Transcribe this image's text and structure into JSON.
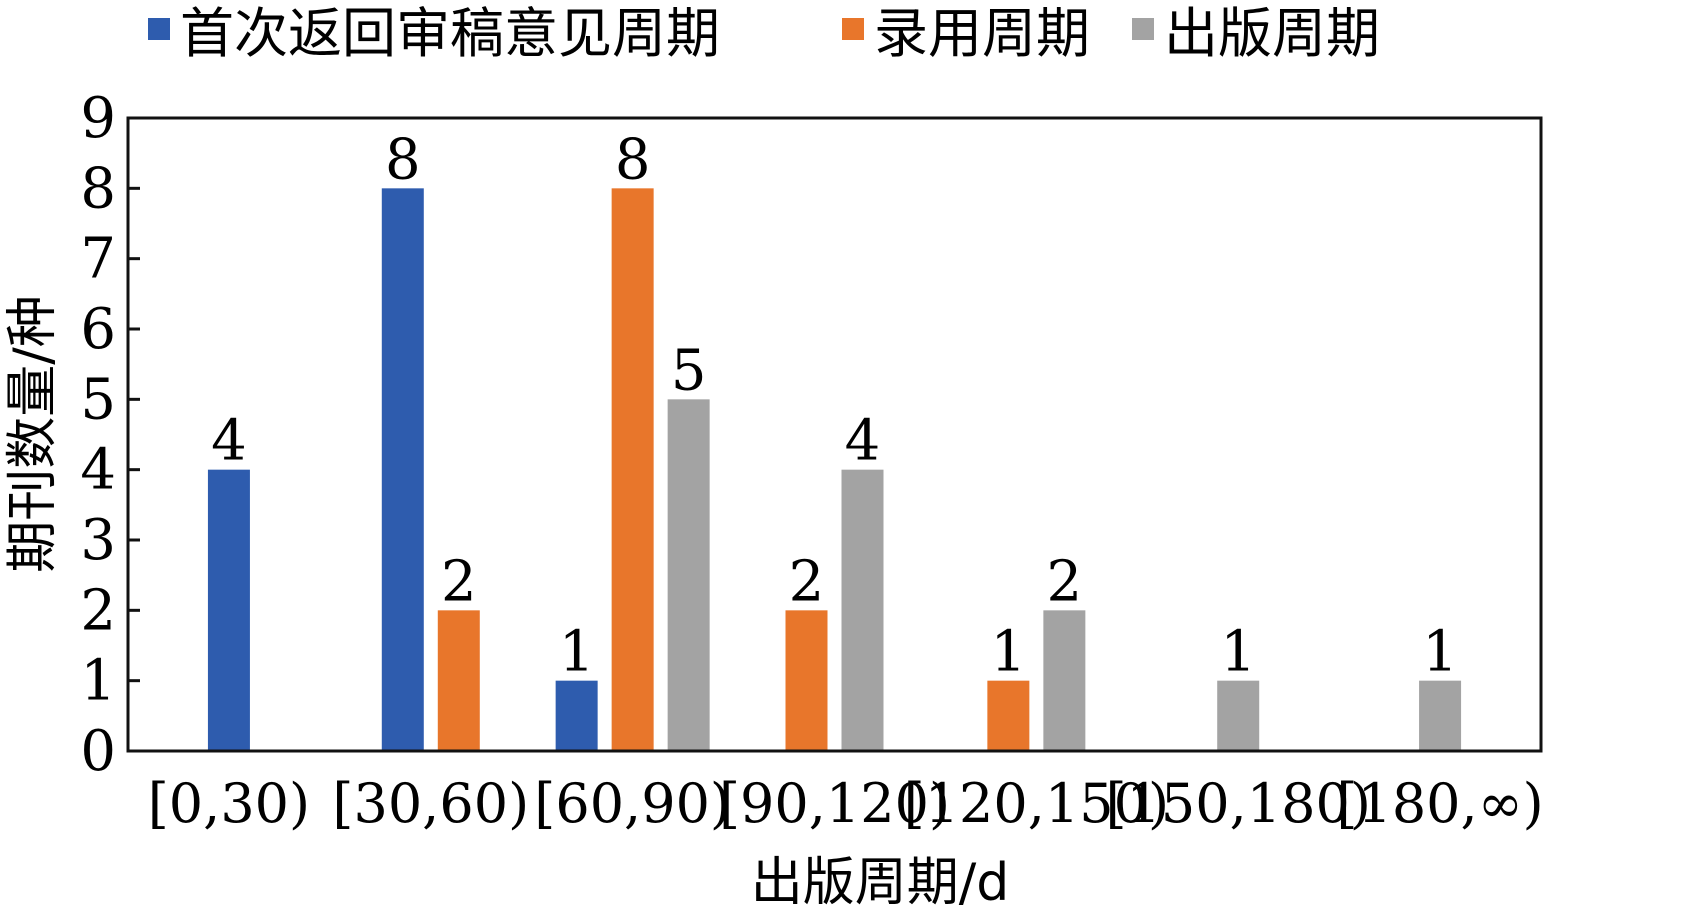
{
  "chart_data": {
    "type": "bar",
    "categories": [
      "[0,30)",
      "[30,60)",
      "[60,90)",
      "[90,120)",
      "[120,150)",
      "[150,180)",
      "[180,∞)"
    ],
    "series": [
      {
        "name": "首次返回审稿意见周期",
        "values": [
          4,
          8,
          1,
          0,
          0,
          0,
          0
        ],
        "color": "#2e5cae"
      },
      {
        "name": "录用周期",
        "values": [
          0,
          2,
          8,
          2,
          1,
          0,
          0
        ],
        "color": "#e8762b"
      },
      {
        "name": "出版周期",
        "values": [
          0,
          0,
          5,
          4,
          2,
          1,
          1
        ],
        "color": "#a3a3a3"
      }
    ],
    "xlabel": "出版周期/d",
    "ylabel": "期刊数量/种",
    "ylim": [
      0,
      9
    ],
    "yticks": [
      0,
      1,
      2,
      3,
      4,
      5,
      6,
      7,
      8,
      9
    ],
    "grid": false,
    "legend_position": "top",
    "show_zero_labels": false
  }
}
